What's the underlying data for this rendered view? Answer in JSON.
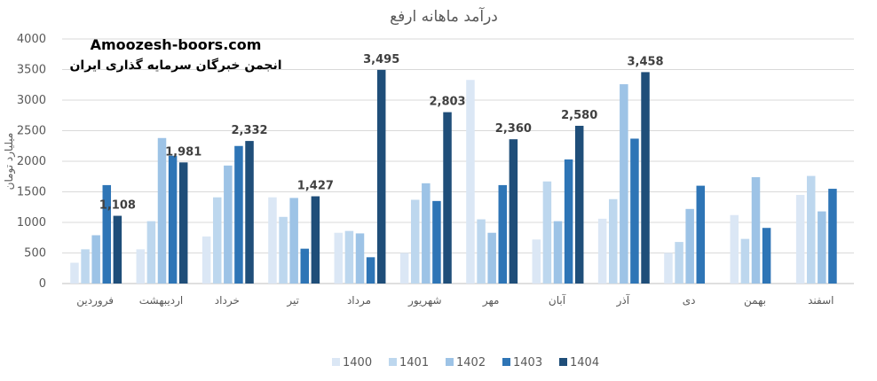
{
  "chart_data": {
    "type": "bar",
    "title": "درآمد ماهانه ارفع",
    "ylabel": "میلیارد تومان",
    "xlabel": "",
    "ylim": [
      0,
      4000
    ],
    "yticks": [
      0,
      500,
      1000,
      1500,
      2000,
      2500,
      3000,
      3500,
      4000
    ],
    "ytick_labels": [
      "0",
      "500",
      "1000",
      "1500",
      "2000",
      "2500",
      "3000",
      "3500",
      "4000"
    ],
    "grid": true,
    "legend_position": "bottom",
    "categories": [
      "فروردین",
      "اردیبهشت",
      "خرداد",
      "تیر",
      "مرداد",
      "شهریور",
      "مهر",
      "آبان",
      "آذر",
      "دی",
      "بهمن",
      "اسفند"
    ],
    "series": [
      {
        "name": "1400",
        "color": "#dbe7f5",
        "values": [
          340,
          560,
          770,
          1410,
          830,
          500,
          3330,
          720,
          1060,
          500,
          1120,
          1450
        ]
      },
      {
        "name": "1401",
        "color": "#bdd7ee",
        "values": [
          560,
          1020,
          1410,
          1090,
          860,
          1370,
          1050,
          1670,
          1380,
          680,
          730,
          1760
        ]
      },
      {
        "name": "1402",
        "color": "#9dc3e6",
        "values": [
          790,
          2380,
          1930,
          1400,
          820,
          1640,
          830,
          1020,
          3260,
          1220,
          1740,
          1180
        ]
      },
      {
        "name": "1403",
        "color": "#2e75b6",
        "values": [
          1610,
          2090,
          2250,
          570,
          430,
          1350,
          1610,
          2030,
          2370,
          1600,
          910,
          1550
        ]
      },
      {
        "name": "1404",
        "color": "#1f4e79",
        "values": [
          1108,
          1981,
          2332,
          1427,
          3495,
          2803,
          2360,
          2580,
          3458,
          null,
          null,
          null
        ]
      }
    ],
    "data_labels": [
      "1,108",
      "1,981",
      "2,332",
      "1,427",
      "3,495",
      "2,803",
      "2,360",
      "2,580",
      "3,458"
    ]
  },
  "watermark": {
    "site": "Amoozesh-boors.com",
    "org": "انجمن خبرگان سرمایه گذاری ایران"
  }
}
